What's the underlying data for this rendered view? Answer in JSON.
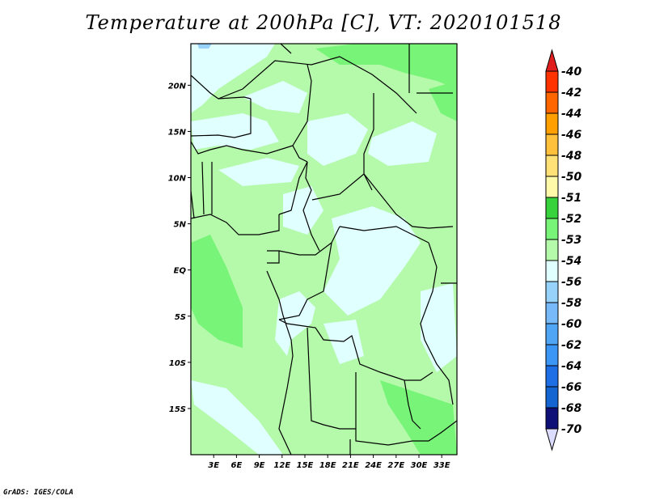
{
  "title": "Temperature at 200hPa [C], VT: 2020101518",
  "credit": "GrADS: IGES/COLA",
  "map": {
    "lat_labels": [
      "20N",
      "15N",
      "10N",
      "5N",
      "EQ",
      "5S",
      "10S",
      "15S"
    ],
    "lat_values": [
      20,
      15,
      10,
      5,
      0,
      -5,
      -10,
      -15
    ],
    "lon_labels": [
      "3E",
      "6E",
      "9E",
      "12E",
      "15E",
      "18E",
      "21E",
      "24E",
      "27E",
      "30E",
      "33E"
    ],
    "lon_values": [
      3,
      6,
      9,
      12,
      15,
      18,
      21,
      24,
      27,
      30,
      33
    ],
    "lon_range": [
      0,
      35
    ],
    "lat_range": [
      -20,
      24.5
    ]
  },
  "colorbar": {
    "labels": [
      "-40",
      "-42",
      "-44",
      "-46",
      "-48",
      "-50",
      "-51",
      "-52",
      "-53",
      "-54",
      "-56",
      "-58",
      "-60",
      "-62",
      "-64",
      "-66",
      "-68",
      "-70"
    ],
    "colors": [
      "#ff3300",
      "#ff6600",
      "#ffa000",
      "#ffc03c",
      "#ffe178",
      "#fffaaa",
      "#37d23c",
      "#78f578",
      "#b4faaa",
      "#e0ffff",
      "#96d2fa",
      "#78b9fa",
      "#50a5f5",
      "#3c96f5",
      "#1e6ee6",
      "#1464d2",
      "#0f0f78"
    ],
    "top_arrow_color": "#e11e1e",
    "bottom_arrow_color": "#dcdcff"
  }
}
